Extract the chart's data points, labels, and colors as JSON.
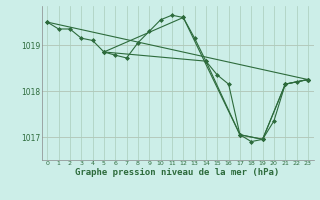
{
  "background_color": "#cceee8",
  "grid_color": "#aaccbb",
  "line_color": "#2d6b3c",
  "marker_color": "#2d6b3c",
  "title": "Graphe pression niveau de la mer (hPa)",
  "title_fontsize": 6.5,
  "xmin": -0.5,
  "xmax": 23.5,
  "ymin": 1016.5,
  "ymax": 1019.85,
  "yticks": [
    1017,
    1018,
    1019
  ],
  "xticks": [
    0,
    1,
    2,
    3,
    4,
    5,
    6,
    7,
    8,
    9,
    10,
    11,
    12,
    13,
    14,
    15,
    16,
    17,
    18,
    19,
    20,
    21,
    22,
    23
  ],
  "series1": {
    "x": [
      0,
      1,
      2,
      3,
      4,
      5,
      6,
      7,
      8,
      9,
      10,
      11,
      12,
      13,
      14,
      15,
      16,
      17,
      18,
      19,
      20,
      21,
      22,
      23
    ],
    "y": [
      1019.5,
      1019.35,
      1019.35,
      1019.15,
      1019.1,
      1018.85,
      1018.78,
      1018.72,
      1019.05,
      1019.3,
      1019.55,
      1019.65,
      1019.6,
      1019.15,
      1018.65,
      1018.35,
      1018.15,
      1017.05,
      1016.9,
      1016.95,
      1017.35,
      1018.15,
      1018.2,
      1018.25
    ]
  },
  "series2": {
    "x": [
      5,
      6,
      7,
      14,
      19,
      20,
      21,
      22,
      23
    ],
    "y": [
      1018.85,
      1018.78,
      1018.72,
      1018.65,
      1016.95,
      1017.35,
      1018.15,
      1018.2,
      1018.25
    ]
  },
  "series3": {
    "x": [
      0,
      23
    ],
    "y": [
      1019.5,
      1018.25
    ]
  },
  "series4": {
    "x": [
      5,
      12,
      17,
      19,
      21,
      23
    ],
    "y": [
      1018.85,
      1019.6,
      1017.05,
      1016.95,
      1018.15,
      1018.25
    ]
  },
  "series5": {
    "x": [
      5,
      14,
      17,
      19,
      21,
      23
    ],
    "y": [
      1018.85,
      1018.65,
      1017.05,
      1016.95,
      1018.15,
      1018.25
    ]
  }
}
